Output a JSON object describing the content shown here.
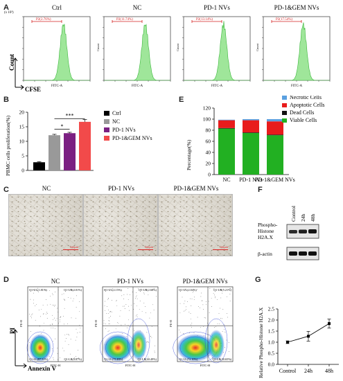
{
  "panel_letters": {
    "a": "A",
    "b": "B",
    "c": "C",
    "d": "D",
    "e": "E",
    "f": "F",
    "g": "G"
  },
  "colors": {
    "histogram_fill": "#9fe69a",
    "histogram_stroke": "#3cb83c",
    "gate": "#d42020",
    "ctrl": "#000000",
    "nc": "#999999",
    "pd1": "#7b2082",
    "pd1gem": "#f24a4a",
    "viable": "#22b022",
    "dead": "#111111",
    "apoptotic": "#e81c1c",
    "necrotic": "#5aa0e0"
  },
  "panel_a": {
    "scale_label": "(x 10³)",
    "y_axis_label": "Count",
    "x_axis_label": "CFSE",
    "plots": [
      {
        "title": "Ctrl",
        "gate": "P2(2.76%)",
        "xlabel": "FITC-A",
        "ylabel": ""
      },
      {
        "title": "NC",
        "gate": "P2(11.74%)",
        "xlabel": "FITC-A",
        "ylabel": "Count"
      },
      {
        "title": "PD-1 NVs",
        "gate": "P2(13.14%)",
        "xlabel": "FITC-A",
        "ylabel": "Count"
      },
      {
        "title": "PD-1&GEM NVs",
        "gate": "P2(17.54%)",
        "xlabel": "FITC-A",
        "ylabel": "Count"
      }
    ]
  },
  "chart_data": [
    {
      "type": "bar",
      "panel": "B",
      "ylabel": "PBMC cells proliferation(%)",
      "ylim": [
        0,
        20
      ],
      "yticks": [
        "0",
        "5",
        "10",
        "15",
        "20"
      ],
      "categories": [
        "Ctrl",
        "NC",
        "PD-1 NVs",
        "PD-1&GEM NVs"
      ],
      "values": [
        2.8,
        12.1,
        12.8,
        16.7
      ],
      "errors": [
        0.2,
        0.3,
        0.3,
        0.8
      ],
      "legend": [
        "Ctrl",
        "NC",
        "PD-1 NVs",
        "PD-1&GEM NVs"
      ],
      "significance": [
        {
          "from": "NC",
          "to": "PD-1 NVs",
          "label": "*"
        },
        {
          "from": "NC",
          "to": "PD-1&GEM NVs",
          "label": "***"
        }
      ]
    },
    {
      "type": "bar",
      "panel": "E",
      "stacked": true,
      "ylabel": "Percentage(%)",
      "ylim": [
        0,
        120
      ],
      "yticks": [
        "0",
        "20",
        "40",
        "60",
        "80",
        "100",
        "120"
      ],
      "categories": [
        "NC",
        "PD-1 NVs",
        "PD-1&GEM NVs"
      ],
      "series": [
        {
          "name": "Viable Cells",
          "values": [
            83,
            75,
            71
          ]
        },
        {
          "name": "Dead Cells",
          "values": [
            1,
            1,
            1
          ]
        },
        {
          "name": "Apoptotic Cells",
          "values": [
            14,
            22,
            24
          ]
        },
        {
          "name": "Necrotic Cells",
          "values": [
            1,
            2,
            4
          ]
        }
      ],
      "legend_order": [
        "Necrotic Cells",
        "Apoptotic Cells",
        "Dead Cells",
        "Viable Cells"
      ]
    },
    {
      "type": "line",
      "panel": "G",
      "ylabel": "Relative Phospho-Histone H2A.X",
      "ylim": [
        0,
        2.5
      ],
      "yticks": [
        "0.0",
        "0.5",
        "1.0",
        "1.5",
        "2.0",
        "2.5"
      ],
      "categories": [
        "Control",
        "24h",
        "48h"
      ],
      "values": [
        1.0,
        1.27,
        1.84
      ],
      "errors": [
        0.06,
        0.22,
        0.2
      ]
    }
  ],
  "panel_c": {
    "labels": [
      "NC",
      "PD-1 NVs",
      "PD-1&GEM NVs"
    ],
    "scale": [
      "100μm",
      "100μm",
      "100μm"
    ]
  },
  "panel_d": {
    "y_axis_label": "PI",
    "x_axis_label": "Annexin V",
    "plots": [
      {
        "title": "NC",
        "ul": "Q1-UL(1.81%)",
        "ur": "Q1-UR(2.01%)",
        "ll": "Q1-LL(87.31%)",
        "lr": "Q1-LR(8.87%)",
        "xlabel": "FITC-H",
        "ylabel": "PE-H"
      },
      {
        "title": "PD-1 NVs",
        "ul": "Q1-UL(2.15%)",
        "ur": "Q1-UR(2.68%)",
        "ll": "Q1-LL(75.49%)",
        "lr": "Q1-LR(19.49%)",
        "xlabel": "FITC-H",
        "ylabel": "PE-H"
      },
      {
        "title": "PD-1&GEM NVs",
        "ul": "Q1-UL(2.04%)",
        "ur": "Q1-UR(5.21%)",
        "ll": "Q1-LL(72.10%)",
        "lr": "Q1-LR(20.65%)",
        "xlabel": "FITC-H",
        "ylabel": "PE-H"
      }
    ]
  },
  "panel_f": {
    "lanes": [
      "Control",
      "24h",
      "48h"
    ],
    "rows": [
      "Phospho-Histone H2A.X",
      "β-actin"
    ],
    "row1_lines": [
      "Phospho-",
      "Histone",
      "H2A.X"
    ]
  }
}
